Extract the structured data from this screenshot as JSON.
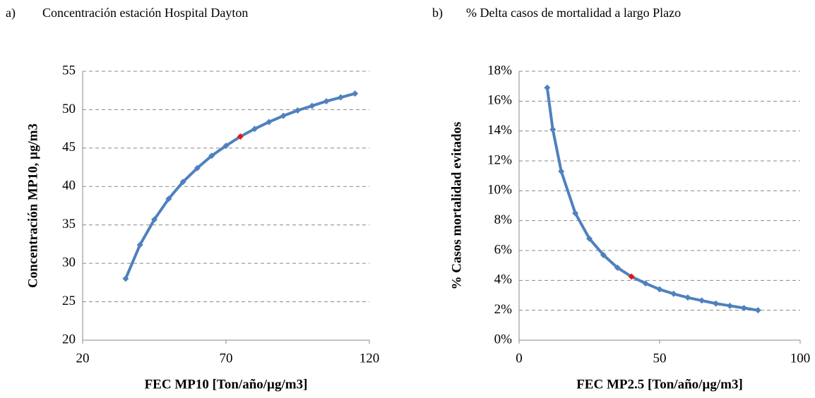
{
  "chart_data": [
    {
      "type": "line",
      "panel": "a)",
      "title": "Concentración estación Hospital Dayton",
      "x_label": "FEC MP10 [Ton/año/µg/m3]",
      "y_label": "Concentración MP10, µg/m3",
      "x": [
        35,
        40,
        45,
        50,
        55,
        60,
        65,
        70,
        75,
        80,
        85,
        90,
        95,
        100,
        105,
        110,
        115
      ],
      "series": [
        {
          "color": "#4f81bd",
          "values": [
            28,
            32.4,
            35.7,
            38.4,
            40.6,
            42.4,
            44.0,
            45.3,
            46.5,
            47.5,
            48.4,
            49.2,
            49.9,
            50.5,
            51.1,
            51.6,
            52.1
          ]
        }
      ],
      "highlight_index": 8,
      "highlight_color": "#e8141b",
      "xlim": [
        20,
        120
      ],
      "xticks": [
        20,
        70,
        120
      ],
      "ylim": [
        20,
        55
      ],
      "yticks": [
        20,
        25,
        30,
        35,
        40,
        45,
        50,
        55
      ],
      "grid": true
    },
    {
      "type": "line",
      "panel": "b)",
      "title": "% Delta casos de mortalidad a largo Plazo",
      "x_label": "FEC MP2.5 [Ton/año/µg/m3]",
      "y_label": "% Casos mortalidad evitados",
      "x": [
        10,
        12,
        15,
        20,
        25,
        30,
        35,
        40,
        45,
        50,
        55,
        60,
        65,
        70,
        75,
        80,
        85
      ],
      "series": [
        {
          "color": "#4f81bd",
          "values": [
            16.9,
            14.1,
            11.3,
            8.5,
            6.8,
            5.7,
            4.85,
            4.25,
            3.8,
            3.4,
            3.1,
            2.85,
            2.65,
            2.45,
            2.3,
            2.15,
            2.0
          ]
        }
      ],
      "highlight_index": 7,
      "highlight_color": "#e8141b",
      "xlim": [
        0,
        100
      ],
      "xticks": [
        0,
        50,
        100
      ],
      "ylim": [
        0,
        18
      ],
      "yticks": [
        {
          "value": 0,
          "label": "0%"
        },
        {
          "value": 2,
          "label": "2%"
        },
        {
          "value": 4,
          "label": "4%"
        },
        {
          "value": 6,
          "label": "6%"
        },
        {
          "value": 8,
          "label": "8%"
        },
        {
          "value": 10,
          "label": "10%"
        },
        {
          "value": 12,
          "label": "12%"
        },
        {
          "value": 14,
          "label": "14%"
        },
        {
          "value": 16,
          "label": "16%"
        },
        {
          "value": 18,
          "label": "18%"
        }
      ],
      "grid": true
    }
  ]
}
